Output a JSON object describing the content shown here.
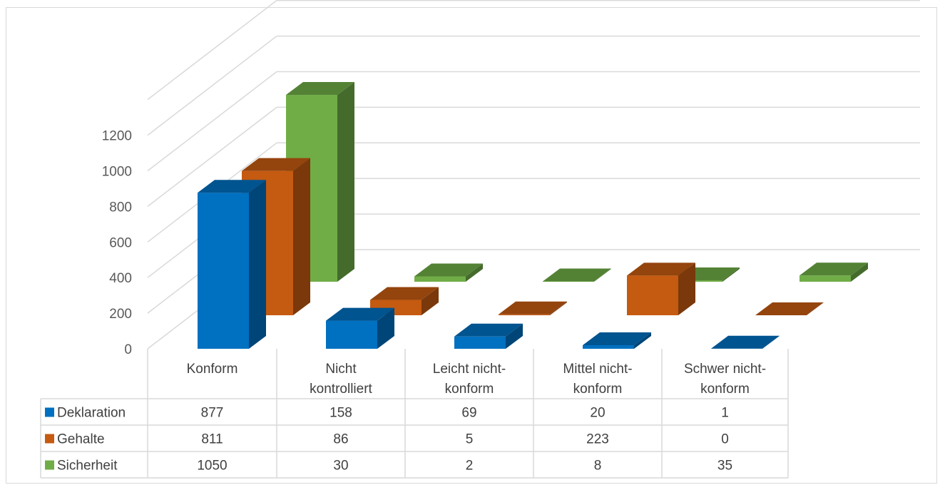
{
  "chart_data": {
    "type": "bar",
    "variant": "3d-clustered-with-data-table",
    "categories": [
      [
        "Konform"
      ],
      [
        "Nicht",
        "kontrolliert"
      ],
      [
        "Leicht nicht-",
        "konform"
      ],
      [
        "Mittel nicht-",
        "konform"
      ],
      [
        "Schwer nicht-",
        "konform"
      ]
    ],
    "series": [
      {
        "name": "Deklaration",
        "color": "#0070c0",
        "values": [
          877,
          158,
          69,
          20,
          1
        ]
      },
      {
        "name": "Gehalte",
        "color": "#c55a11",
        "values": [
          811,
          86,
          5,
          223,
          0
        ]
      },
      {
        "name": "Sicherheit",
        "color": "#70ad47",
        "values": [
          1050,
          30,
          2,
          8,
          35
        ]
      }
    ],
    "y_ticks": [
      "0",
      "200",
      "400",
      "600",
      "800",
      "1000",
      "1200"
    ],
    "ylim": [
      0,
      1200
    ],
    "grid": true,
    "legend": "data-table-left"
  }
}
